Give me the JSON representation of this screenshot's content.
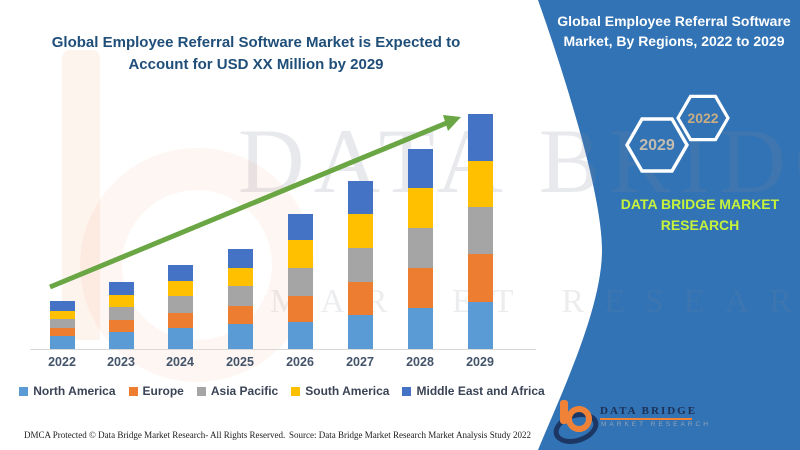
{
  "header": {
    "chart_title": "Global Employee Referral Software Market is Expected to Account for USD XX Million by 2029"
  },
  "chart_data": {
    "type": "bar",
    "stacked": true,
    "title": "Global Employee Referral Software Market is Expected to Account for USD XX Million by 2029",
    "categories": [
      "2022",
      "2023",
      "2024",
      "2025",
      "2026",
      "2027",
      "2028",
      "2029"
    ],
    "series": [
      {
        "name": "North America",
        "color": "#5B9BD5",
        "values": [
          13,
          17,
          21,
          25,
          27,
          34,
          41,
          47
        ]
      },
      {
        "name": "Europe",
        "color": "#ED7D31",
        "values": [
          8,
          12,
          15,
          18,
          26,
          33,
          40,
          48
        ]
      },
      {
        "name": "Asia Pacific",
        "color": "#A5A5A5",
        "values": [
          9,
          13,
          17,
          20,
          28,
          34,
          40,
          47
        ]
      },
      {
        "name": "South America",
        "color": "#FFC000",
        "values": [
          8,
          12,
          15,
          18,
          28,
          34,
          40,
          46
        ]
      },
      {
        "name": "Middle East and Africa",
        "color": "#4472C4",
        "values": [
          10,
          13,
          16,
          19,
          26,
          33,
          39,
          47
        ]
      }
    ],
    "totals": [
      48,
      67,
      84,
      100,
      135,
      168,
      200,
      235
    ],
    "units": "relative market size (actual USD value shown as XX, undisclosed)",
    "xlabel": "",
    "ylabel": "",
    "grid": false,
    "legend_position": "bottom",
    "annotations": [
      {
        "type": "trend-arrow",
        "color": "#6AA644",
        "from": "above 2022 bar",
        "to": "top of 2029 bar"
      }
    ]
  },
  "sidebar": {
    "title": "Global Employee Referral Software Market, By Regions, 2022 to 2029",
    "hexagon_front_label": "2022",
    "hexagon_back_label": "2029",
    "brand_name": "DATA BRIDGE MARKET RESEARCH",
    "logo": {
      "name_line": "DATA BRIDGE",
      "tagline": "MARKET RESEARCH"
    },
    "colors": {
      "panel": "#3173B5",
      "brand_text": "#C6F23C",
      "hex_2022_text": "#C9AE85",
      "hex_2029_text": "#C4BCB0"
    }
  },
  "watermark": {
    "line1": "DATA BRIDGE",
    "line2": "MARKET RESEARCH"
  },
  "footer": {
    "left": "DMCA Protected © Data Bridge Market Research- All Rights Reserved.",
    "right": "Source: Data Bridge Market Research Market Analysis Study 2022"
  }
}
